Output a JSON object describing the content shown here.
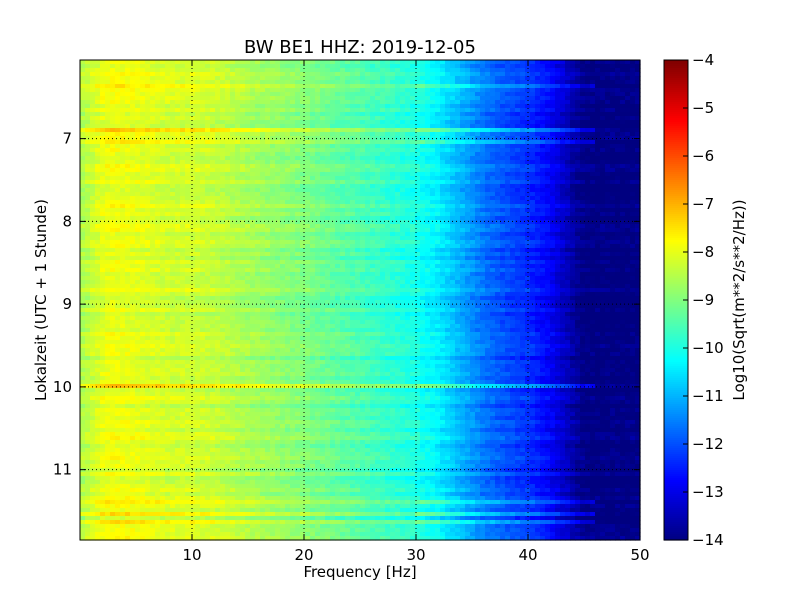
{
  "chart_data": {
    "type": "heatmap",
    "title": "BW BE1 HHZ: 2019-12-05",
    "xlabel": "Frequency [Hz]",
    "ylabel": "Lokalzeit (UTC + 1 Stunde)",
    "colorbar_label": "Log10(Sqrt(m**2/s**2/Hz))",
    "colormap": "jet",
    "xlim": [
      0,
      50
    ],
    "ylim": [
      6.05,
      11.85
    ],
    "y_inverted": true,
    "x_ticks": [
      10,
      20,
      30,
      40,
      50
    ],
    "x_tick_labels": [
      "10",
      "20",
      "30",
      "40",
      "50"
    ],
    "y_ticks": [
      7,
      8,
      9,
      10,
      11
    ],
    "y_tick_labels": [
      "7",
      "8",
      "9",
      "10",
      "11"
    ],
    "clim": [
      -14,
      -4
    ],
    "colorbar_ticks": [
      -4,
      -5,
      -6,
      -7,
      -8,
      -9,
      -10,
      -11,
      -12,
      -13,
      -14
    ],
    "colorbar_tick_labels": [
      "−4",
      "−5",
      "−6",
      "−7",
      "−8",
      "−9",
      "−10",
      "−11",
      "−12",
      "−13",
      "−14"
    ],
    "grid": true,
    "frequency_profile": {
      "x": [
        0,
        1,
        2,
        3,
        5,
        8,
        10,
        12,
        15,
        20,
        25,
        30,
        32,
        34,
        36,
        38,
        40,
        42,
        43,
        44,
        45,
        46,
        50
      ],
      "z": [
        -8.6,
        -8.3,
        -8.0,
        -7.9,
        -8.0,
        -8.2,
        -8.2,
        -8.3,
        -8.6,
        -9.0,
        -9.5,
        -10.0,
        -10.4,
        -11.0,
        -11.6,
        -12.0,
        -12.3,
        -12.8,
        -13.2,
        -13.6,
        -14.0,
        -14.0,
        -14.0
      ]
    },
    "bright_bands_hours": [
      6.35,
      6.9,
      7.05,
      10.0,
      11.4,
      11.55,
      11.65
    ]
  }
}
